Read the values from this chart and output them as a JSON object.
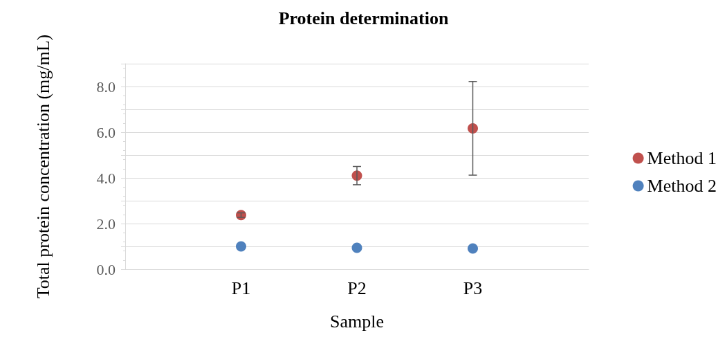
{
  "chart_data": {
    "type": "scatter",
    "title": "Protein determination",
    "xlabel": "Sample",
    "ylabel": "Total protein concentration (mg/mL)",
    "categories": [
      null,
      "P1",
      "P2",
      "P3",
      null
    ],
    "series": [
      {
        "name": "Method 1",
        "color": "#c0504d",
        "values": [
          null,
          2.37,
          4.1,
          6.17,
          null
        ],
        "errors": [
          null,
          0.1,
          0.4,
          2.05,
          null
        ]
      },
      {
        "name": "Method 2",
        "color": "#4f81bd",
        "values": [
          null,
          1.0,
          0.94,
          0.91,
          null
        ]
      }
    ],
    "ylim": [
      0,
      9
    ],
    "yticks": [
      {
        "value": 0,
        "label": "0.0"
      },
      {
        "value": 1,
        "label": null
      },
      {
        "value": 2,
        "label": "2.0"
      },
      {
        "value": 3,
        "label": null
      },
      {
        "value": 4,
        "label": "4.0"
      },
      {
        "value": 5,
        "label": null
      },
      {
        "value": 6,
        "label": "6.0"
      },
      {
        "value": 7,
        "label": null
      },
      {
        "value": 8,
        "label": "8.0"
      },
      {
        "value": 9,
        "label": null
      }
    ],
    "grid": "y",
    "legend": "right",
    "marker": "circle"
  }
}
